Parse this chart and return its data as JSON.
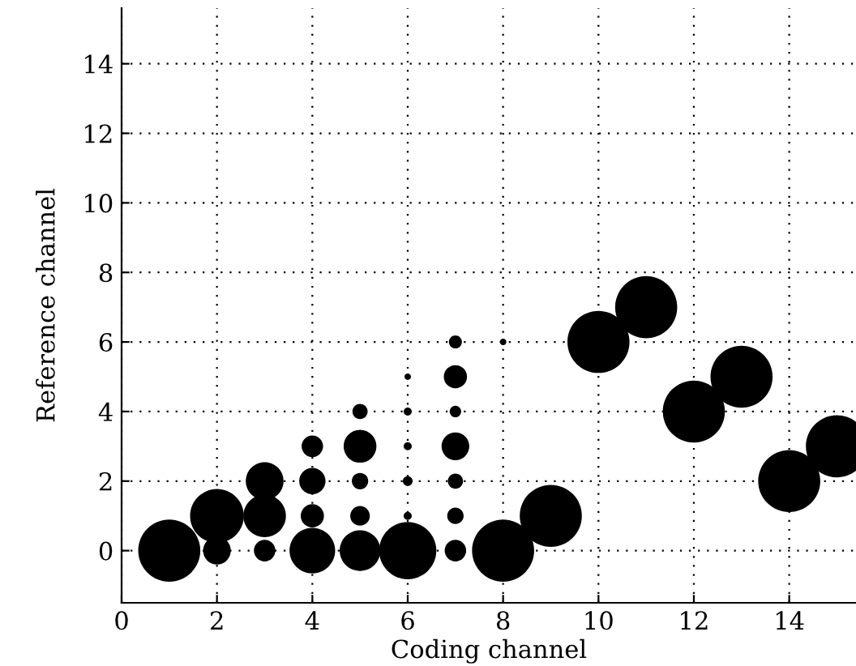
{
  "chart_data": {
    "type": "bubble",
    "xlabel": "Coding channel",
    "ylabel": "Reference channel",
    "x": [
      1,
      2,
      2,
      3,
      3,
      3,
      4,
      4,
      4,
      4,
      5,
      5,
      5,
      5,
      5,
      6,
      6,
      6,
      6,
      6,
      6,
      7,
      7,
      7,
      7,
      7,
      7,
      7,
      8,
      8,
      9,
      10,
      11,
      12,
      13,
      14,
      15
    ],
    "values": [
      0,
      1,
      0,
      2,
      1,
      0,
      0,
      1,
      2,
      3,
      0,
      1,
      2,
      3,
      4,
      0,
      1,
      2,
      3,
      4,
      5,
      0,
      1,
      2,
      3,
      4,
      5,
      6,
      0,
      6,
      1,
      6,
      7,
      4,
      5,
      2,
      3
    ],
    "sizes": [
      1,
      0.75,
      0.2,
      0.37,
      0.47,
      0.12,
      0.54,
      0.14,
      0.18,
      0.12,
      0.43,
      0.1,
      0.07,
      0.28,
      0.06,
      0.85,
      0.017,
      0.025,
      0.017,
      0.017,
      0.011,
      0.12,
      0.07,
      0.06,
      0.2,
      0.034,
      0.14,
      0.044,
      1,
      0.011,
      1,
      1,
      1,
      1,
      1,
      1,
      1
    ],
    "color": "#000000",
    "xlim": [
      0,
      15.4
    ],
    "xticks": [
      0,
      2,
      4,
      6,
      8,
      10,
      12,
      14
    ],
    "ylim": [
      -1.5,
      15.6
    ],
    "yticks": [
      0,
      2,
      4,
      6,
      8,
      10,
      12,
      14
    ],
    "grid": true
  }
}
